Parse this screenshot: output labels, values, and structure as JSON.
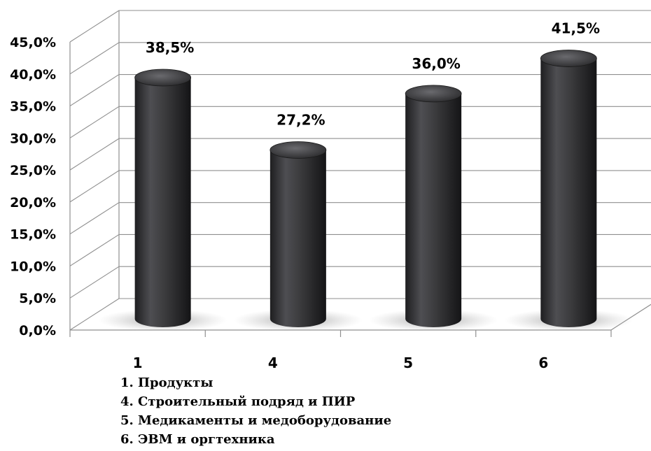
{
  "chart_data": {
    "type": "bar",
    "style": "3d-cylinder",
    "categories": [
      "1",
      "4",
      "5",
      "6"
    ],
    "values": [
      38.5,
      27.2,
      36.0,
      41.5
    ],
    "value_labels": [
      "38,5%",
      "27,2%",
      "36,0%",
      "41,5%"
    ],
    "ylim": [
      0,
      45
    ],
    "y_ticks": [
      "0,0%",
      "5,0%",
      "10,0%",
      "15,0%",
      "20,0%",
      "25,0%",
      "30,0%",
      "35,0%",
      "40,0%",
      "45,0%"
    ],
    "grid": true,
    "bar_color": "#3a3a3c",
    "legend": [
      "1. Продукты",
      "4. Строительный подряд и ПИР",
      "5. Медикаменты и медоборудование",
      "6. ЭВМ и оргтехника"
    ]
  }
}
